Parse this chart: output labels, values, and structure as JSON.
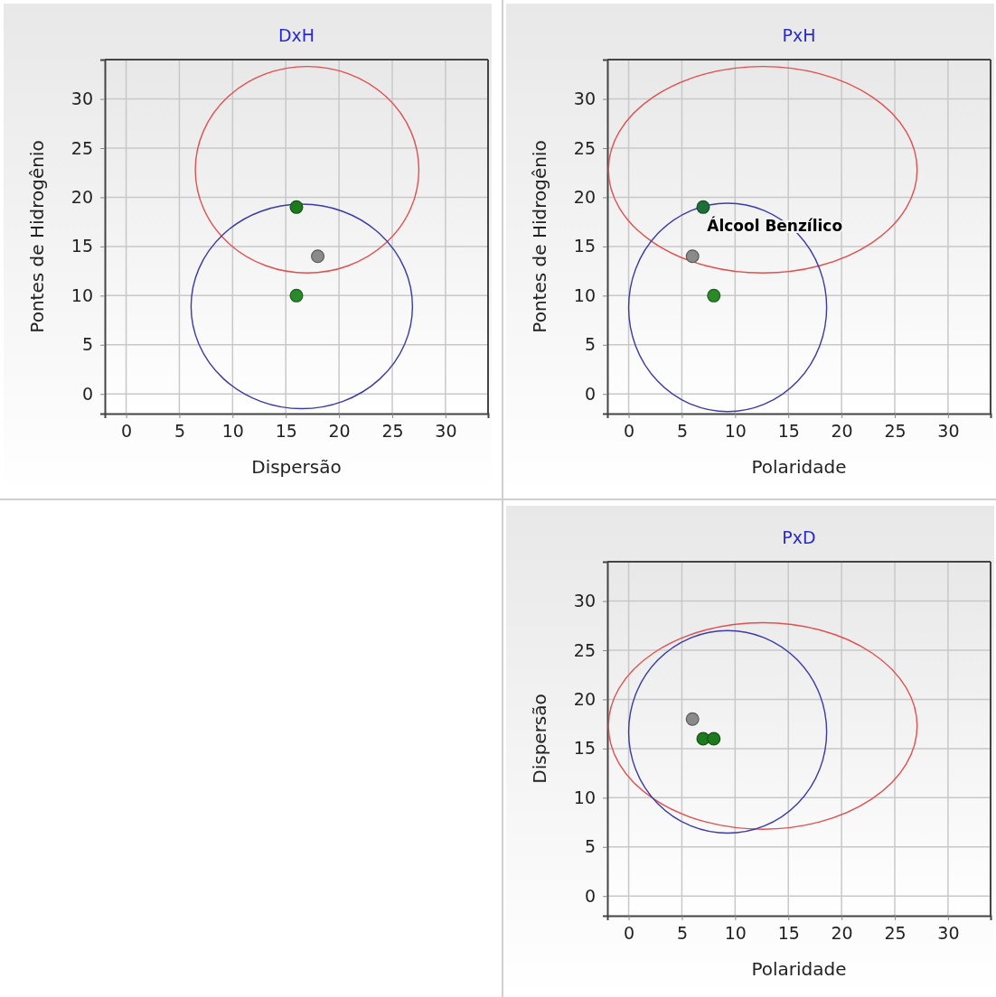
{
  "chart_data": [
    {
      "type": "scatter",
      "title": "DxH",
      "xlabel": "Dispersão",
      "ylabel": "Pontes de Hidrogênio",
      "xlim": [
        -2,
        34
      ],
      "ylim": [
        -2,
        34
      ],
      "xticks": [
        0,
        5,
        10,
        15,
        20,
        25,
        30
      ],
      "yticks": [
        0,
        5,
        10,
        15,
        20,
        25,
        30
      ],
      "grid": true,
      "series": [
        {
          "marker": "circle",
          "x": [
            16,
            16,
            18
          ],
          "values": [
            19,
            10,
            14
          ],
          "colors": [
            "#1e7a1e",
            "#2a8a2a",
            "#8a8a8a"
          ]
        }
      ]
    },
    {
      "type": "scatter",
      "title": "PxH",
      "xlabel": "Polaridade",
      "ylabel": "Pontes de Hidrogênio",
      "xlim": [
        -2,
        34
      ],
      "ylim": [
        -2,
        34
      ],
      "xticks": [
        0,
        5,
        10,
        15,
        20,
        25,
        30
      ],
      "yticks": [
        0,
        5,
        10,
        15,
        20,
        25,
        30
      ],
      "grid": true,
      "annotations": [
        {
          "text": "Álcool Benzílico",
          "x": 6,
          "y": 14
        }
      ],
      "series": [
        {
          "marker": "circle",
          "x": [
            7,
            6,
            8
          ],
          "values": [
            19,
            14,
            10
          ],
          "colors": [
            "#1e6e3a",
            "#8a8a8a",
            "#2a8a2a"
          ]
        }
      ]
    },
    {
      "type": "scatter",
      "title": "PxD",
      "xlabel": "Polaridade",
      "ylabel": "Dispersão",
      "xlim": [
        -2,
        34
      ],
      "ylim": [
        -2,
        34
      ],
      "xticks": [
        0,
        5,
        10,
        15,
        20,
        25,
        30
      ],
      "yticks": [
        0,
        5,
        10,
        15,
        20,
        25,
        30
      ],
      "grid": true,
      "series": [
        {
          "marker": "circle",
          "x": [
            6,
            7,
            8
          ],
          "values": [
            18,
            16,
            16
          ],
          "colors": [
            "#8a8a8a",
            "#1e7a1e",
            "#1e7a1e"
          ]
        }
      ]
    }
  ]
}
